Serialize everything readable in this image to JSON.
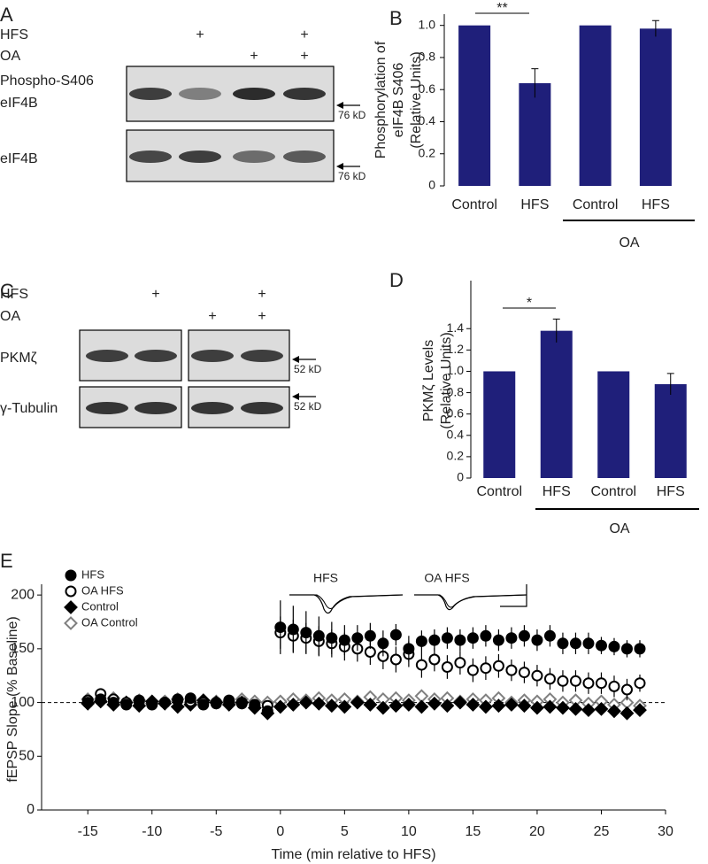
{
  "blots": [
    {
      "panel_label": "A",
      "rows": [
        {
          "label": "HFS",
          "marks": [
            null,
            "+",
            null,
            "+"
          ]
        },
        {
          "label": "OA",
          "marks": [
            null,
            null,
            "+",
            "+"
          ]
        }
      ],
      "strips": [
        {
          "label_lines": [
            "Phospho-S406",
            "eIF4B"
          ],
          "marker": "76 kD"
        },
        {
          "label_lines": [
            "eIF4B"
          ],
          "marker": "76 kD"
        }
      ]
    },
    {
      "panel_label": "C",
      "rows": [
        {
          "label": "HFS",
          "marks": [
            null,
            "+",
            null,
            "+"
          ]
        },
        {
          "label": "OA",
          "marks": [
            null,
            null,
            "+",
            "+"
          ]
        }
      ],
      "strips": [
        {
          "label_lines": [
            "PKMζ"
          ],
          "marker": "52 kD"
        },
        {
          "label_lines": [
            "γ-Tubulin"
          ],
          "marker": "52 kD"
        }
      ]
    }
  ],
  "chart_data": [
    {
      "type": "bar",
      "panel_label": "B",
      "ylabel_lines": [
        "Phosphorylation of",
        "eIF4B S406",
        "(Relative Units)"
      ],
      "categories": [
        "Control",
        "HFS",
        "Control",
        "HFS"
      ],
      "values": [
        1,
        0.64,
        1,
        0.98
      ],
      "errors": [
        null,
        0.09,
        null,
        0.05
      ],
      "color": "#1f1f7a",
      "ylim": [
        0,
        1.07
      ],
      "yticks": [
        0,
        0.2,
        0.4,
        0.6,
        0.8,
        {
          "value": 1,
          "label": "1.0"
        }
      ],
      "annotation": "**",
      "group_label": "OA"
    },
    {
      "type": "bar",
      "panel_label": "D",
      "ylabel_lines": [
        "PKMζ Levels",
        "(Relative Units)"
      ],
      "categories": [
        "Control",
        "HFS",
        "Control",
        "HFS"
      ],
      "values": [
        1,
        1.38,
        1,
        0.88
      ],
      "errors": [
        null,
        0.11,
        null,
        0.1
      ],
      "color": "#1f1f7a",
      "ylim": [
        0,
        1.85
      ],
      "yticks": [
        0,
        0.2,
        0.4,
        0.6,
        0.8,
        {
          "value": 1,
          "label": "1.0"
        },
        1.2,
        1.4
      ],
      "annotation": "*",
      "group_label": "OA"
    },
    {
      "type": "scatter",
      "panel_label": "E",
      "xlabel": "Time (min relative to HFS)",
      "ylabel": "fEPSP Slope (% Baseline)",
      "inset_labels": [
        "HFS",
        "OA HFS"
      ],
      "xlim": [
        -18.6,
        30
      ],
      "xticks": [
        -15,
        -10,
        -5,
        0,
        5,
        10,
        15,
        20,
        25,
        30
      ],
      "ylim": [
        0,
        210
      ],
      "yticks": [
        0,
        50,
        100,
        150,
        200
      ],
      "reference_line": 100,
      "x": [
        -15,
        -14,
        -13,
        -12,
        -11,
        -10,
        -9,
        -8,
        -7,
        -6,
        -5,
        -4,
        -3,
        -2,
        -1,
        0,
        1,
        2,
        3,
        4,
        5,
        6,
        7,
        8,
        9,
        10,
        11,
        12,
        13,
        14,
        15,
        16,
        17,
        18,
        19,
        20,
        21,
        22,
        23,
        24,
        25,
        26,
        27,
        28
      ],
      "series": [
        {
          "name": "HFS",
          "marker": "circle",
          "color": "#000000",
          "fill": "#000000",
          "values": [
            100,
            103,
            100,
            98,
            101,
            99,
            100,
            102,
            104,
            98,
            100,
            101,
            99,
            97,
            92,
            170,
            168,
            165,
            162,
            160,
            158,
            160,
            162,
            155,
            163,
            150,
            157,
            158,
            160,
            158,
            160,
            162,
            158,
            160,
            162,
            158,
            162,
            155,
            155,
            155,
            153,
            152,
            150,
            150
          ],
          "errors": [
            5,
            5,
            5,
            5,
            5,
            5,
            5,
            5,
            5,
            5,
            5,
            5,
            5,
            5,
            5,
            25,
            22,
            20,
            18,
            15,
            14,
            12,
            12,
            12,
            10,
            12,
            10,
            10,
            10,
            10,
            10,
            10,
            10,
            10,
            10,
            10,
            10,
            10,
            10,
            10,
            8,
            8,
            8,
            8
          ]
        },
        {
          "name": "OA HFS",
          "marker": "circle",
          "color": "#000000",
          "fill": "#ffffff",
          "values": [
            102,
            108,
            103,
            100,
            102,
            98,
            100,
            103,
            101,
            100,
            99,
            102,
            100,
            98,
            97,
            165,
            162,
            160,
            157,
            155,
            152,
            150,
            147,
            143,
            140,
            145,
            135,
            140,
            133,
            137,
            130,
            132,
            134,
            130,
            128,
            125,
            122,
            120,
            120,
            118,
            118,
            115,
            112,
            118
          ],
          "errors": [
            5,
            5,
            5,
            5,
            5,
            5,
            5,
            5,
            5,
            5,
            5,
            5,
            5,
            5,
            5,
            15,
            15,
            14,
            14,
            13,
            13,
            12,
            12,
            12,
            12,
            12,
            12,
            11,
            11,
            11,
            11,
            11,
            11,
            10,
            10,
            10,
            10,
            10,
            10,
            10,
            10,
            10,
            10,
            8
          ]
        },
        {
          "name": "Control",
          "marker": "diamond",
          "color": "#000000",
          "fill": "#000000",
          "values": [
            99,
            101,
            98,
            100,
            97,
            101,
            99,
            96,
            98,
            102,
            100,
            98,
            100,
            95,
            90,
            96,
            98,
            100,
            99,
            97,
            96,
            100,
            98,
            95,
            97,
            98,
            96,
            99,
            97,
            100,
            98,
            96,
            97,
            98,
            97,
            95,
            96,
            95,
            94,
            93,
            94,
            92,
            90,
            93
          ],
          "errors": [
            5,
            5,
            5,
            5,
            5,
            5,
            5,
            5,
            5,
            5,
            5,
            5,
            5,
            5,
            5,
            5,
            5,
            5,
            5,
            5,
            5,
            5,
            5,
            5,
            5,
            5,
            5,
            5,
            5,
            5,
            5,
            5,
            5,
            5,
            5,
            5,
            5,
            5,
            5,
            5,
            5,
            5,
            5,
            5
          ]
        },
        {
          "name": "OA Control",
          "marker": "diamond",
          "color": "#808080",
          "fill": "#ffffff",
          "values": [
            103,
            101,
            104,
            100,
            102,
            99,
            101,
            103,
            100,
            102,
            101,
            100,
            103,
            101,
            100,
            101,
            103,
            102,
            104,
            102,
            103,
            101,
            105,
            103,
            104,
            102,
            106,
            103,
            104,
            101,
            103,
            102,
            104,
            100,
            102,
            101,
            103,
            100,
            102,
            99,
            101,
            98,
            100,
            97
          ],
          "errors": [
            5,
            5,
            5,
            5,
            5,
            5,
            5,
            5,
            5,
            5,
            5,
            5,
            5,
            5,
            5,
            5,
            5,
            5,
            5,
            5,
            5,
            5,
            5,
            5,
            5,
            5,
            5,
            5,
            5,
            5,
            5,
            5,
            5,
            5,
            5,
            5,
            5,
            5,
            5,
            5,
            5,
            5,
            5,
            5
          ]
        }
      ]
    }
  ]
}
